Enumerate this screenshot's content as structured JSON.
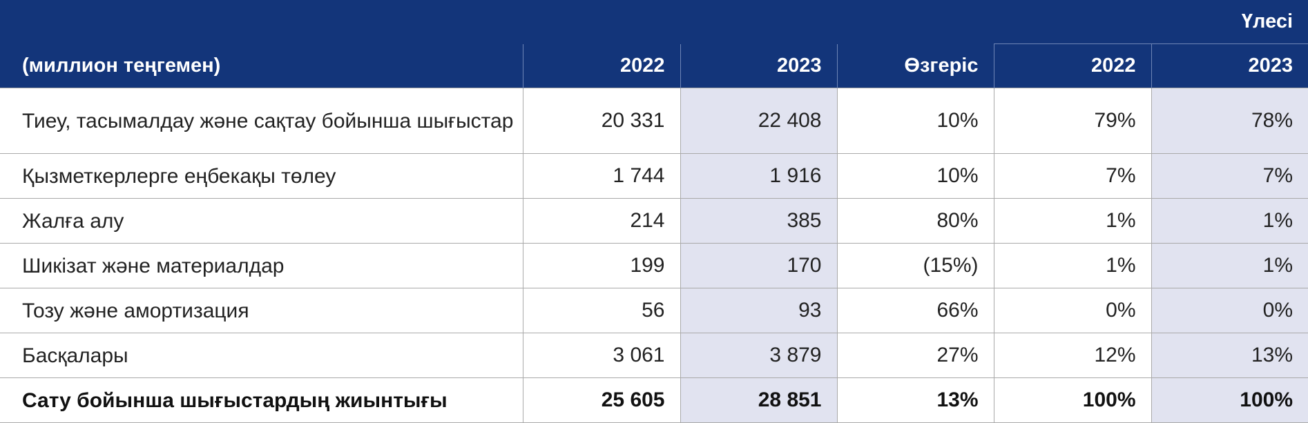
{
  "header": {
    "group_label": "Үлесі",
    "columns": [
      "(миллион теңгемен)",
      "2022",
      "2023",
      "Өзгеріс",
      "2022",
      "2023"
    ]
  },
  "rows": [
    {
      "label": "Тиеу, тасымалдау және сақтау бойынша шығыстар",
      "v2022": "20 331",
      "v2023": "22 408",
      "change": "10%",
      "s2022": "79%",
      "s2023": "78%"
    },
    {
      "label": "Қызметкерлерге еңбекақы төлеу",
      "v2022": "1 744",
      "v2023": "1 916",
      "change": "10%",
      "s2022": "7%",
      "s2023": "7%"
    },
    {
      "label": "Жалға алу",
      "v2022": "214",
      "v2023": "385",
      "change": "80%",
      "s2022": "1%",
      "s2023": "1%"
    },
    {
      "label": "Шикізат және материалдар",
      "v2022": "199",
      "v2023": "170",
      "change": "(15%)",
      "s2022": "1%",
      "s2023": "1%"
    },
    {
      "label": "Тозу және амортизация",
      "v2022": "56",
      "v2023": "93",
      "change": "66%",
      "s2022": "0%",
      "s2023": "0%"
    },
    {
      "label": "Басқалары",
      "v2022": "3 061",
      "v2023": "3 879",
      "change": "27%",
      "s2022": "12%",
      "s2023": "13%"
    }
  ],
  "total": {
    "label": "Сату бойынша шығыстардың жиынтығы",
    "v2022": "25 605",
    "v2023": "28 851",
    "change": "13%",
    "s2022": "100%",
    "s2023": "100%"
  },
  "colors": {
    "header_bg": "#13357a",
    "shade": "#e1e3f0"
  }
}
